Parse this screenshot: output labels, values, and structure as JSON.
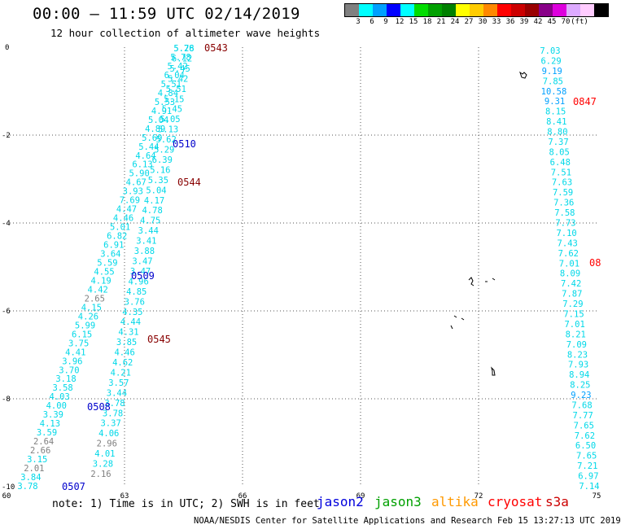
{
  "header": {
    "title": "00:00 – 11:59 UTC 02/14/2019",
    "subtitle": "12 hour collection of altimeter wave heights"
  },
  "legend": {
    "colors": [
      "#808080",
      "#00ffff",
      "#00a0ff",
      "#0000ff",
      "#00ffff",
      "#00dd00",
      "#00a000",
      "#008000",
      "#ffff00",
      "#ffcc00",
      "#ff8800",
      "#ff0000",
      "#cc0000",
      "#990000",
      "#880088",
      "#dd00dd",
      "#ddaaff",
      "#ffccff",
      "#000000"
    ],
    "ticks": [
      "3",
      "6",
      "9",
      "12",
      "15",
      "18",
      "21",
      "24",
      "27",
      "30",
      "33",
      "36",
      "39",
      "42",
      "45",
      "70",
      "(ft)"
    ]
  },
  "axes": {
    "x_ticks": [
      "60",
      "63",
      "66",
      "69",
      "72",
      "75"
    ],
    "y_ticks": [
      "0",
      "-2",
      "-4",
      "-6",
      "-8",
      "-10"
    ]
  },
  "times": [
    "0543",
    "0510",
    "0544",
    "0509",
    "0545",
    "0508",
    "0507",
    "0847",
    "08"
  ],
  "tracks": [
    {
      "id": "col1",
      "values": [
        "5.76",
        "5.78",
        "5.42",
        "6.04",
        "5.51",
        "4.84",
        "5.53",
        "4.91",
        "5.04",
        "4.89",
        "5.69",
        "5.44",
        "4.64",
        "6.13",
        "5.90",
        "4.67",
        "3.93",
        "7.69",
        "4.47",
        "4.46",
        "5.01",
        "6.82",
        "6.91",
        "3.64",
        "5.59",
        "4.55",
        "4.19",
        "4.42",
        "2.65",
        "4.15",
        "4.26",
        "5.99",
        "6.15",
        "3.75",
        "4.41",
        "3.96",
        "3.70",
        "3.18",
        "3.58",
        "4.03",
        "4.00",
        "3.39",
        "4.13",
        "3.59",
        "2.64",
        "2.66",
        "3.15",
        "2.01",
        "3.84",
        "3.78"
      ]
    },
    {
      "id": "col2",
      "values": [
        "5.28",
        "6.12",
        "5.45",
        "5.42",
        "5.51",
        "5.15",
        "5.45",
        "5.05",
        "5.13",
        "5.62",
        "5.29",
        "6.39",
        "5.16",
        "5.35",
        "5.04",
        "4.17",
        "4.78",
        "4.75",
        "3.44",
        "3.41",
        "3.88",
        "3.47",
        "3.47",
        "4.96",
        "4.85",
        "3.76",
        "4.35",
        "4.44",
        "4.31",
        "3.85",
        "4.46",
        "4.62",
        "4.21",
        "3.57",
        "3.44",
        "3.78",
        "3.78",
        "3.37",
        "4.06",
        "2.96",
        "4.01",
        "3.28",
        "2.16"
      ]
    },
    {
      "id": "col3",
      "values": [
        "7.03",
        "6.29",
        "9.19",
        "7.85",
        "10.58",
        "9.31",
        "8.15",
        "8.41",
        "8.80",
        "7.37",
        "8.05",
        "6.48",
        "7.51",
        "7.63",
        "7.59",
        "7.36",
        "7.58",
        "7.73",
        "7.10",
        "7.43",
        "7.62",
        "7.01",
        "8.09",
        "7.42",
        "7.87",
        "7.29",
        "7.15",
        "7.01",
        "8.21",
        "7.09",
        "8.23",
        "7.93",
        "8.94",
        "8.25",
        "9.23",
        "7.68",
        "7.77",
        "7.65",
        "7.62",
        "6.50",
        "7.65",
        "7.21",
        "6.97",
        "7.14"
      ]
    }
  ],
  "footer": {
    "note": "note: 1) Time is in UTC; 2) SWH is in feet",
    "satellites": [
      {
        "name": "jason2",
        "color": "#0000dd"
      },
      {
        "name": "jason3",
        "color": "#00a000"
      },
      {
        "name": "altika",
        "color": "#ff9900"
      },
      {
        "name": "cryosat",
        "color": "#ff0000"
      },
      {
        "name": "s3a",
        "color": "#cc0000"
      }
    ],
    "credit": "NOAA/NESDIS Center for Satellite Applications and Research    Feb 15 13:27:13 UTC 2019"
  }
}
